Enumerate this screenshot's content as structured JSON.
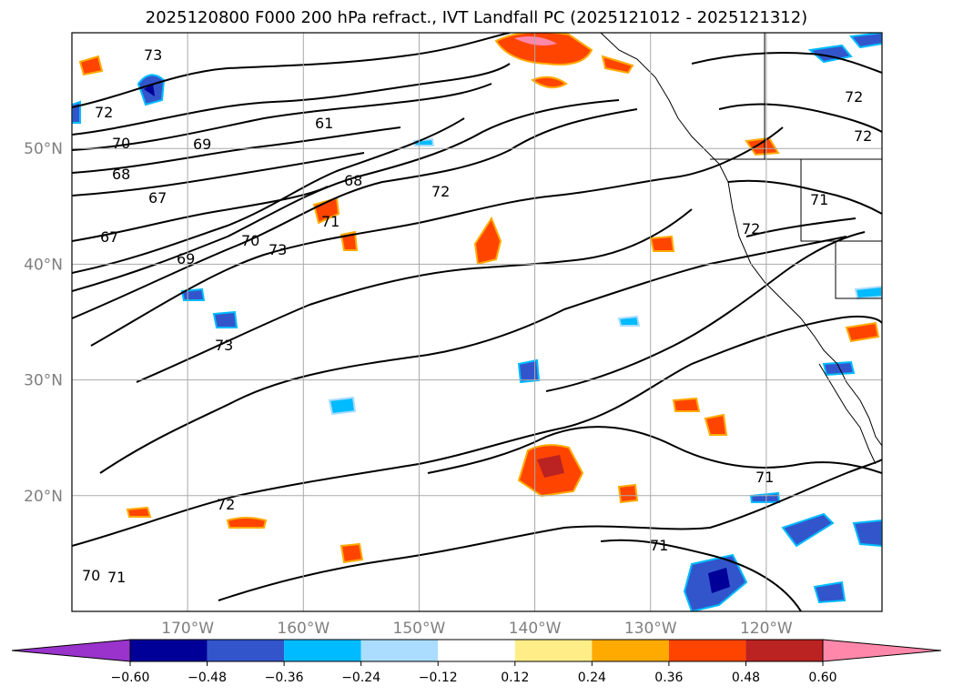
{
  "title": "2025120800 F000 200 hPa refract., IVT Landfall PC (2025121012 - 2025121312)",
  "map": {
    "lat_range": [
      10,
      60
    ],
    "lon_range": [
      -180,
      -110
    ],
    "lat_labels": [
      "50°N",
      "40°N",
      "30°N",
      "20°N"
    ],
    "lat_values": [
      50,
      40,
      30,
      20
    ],
    "lon_labels": [
      "170°W",
      "160°W",
      "150°W",
      "140°W",
      "130°W",
      "120°W"
    ],
    "lon_values": [
      -170,
      -160,
      -150,
      -140,
      -130,
      -120
    ],
    "grid": true
  },
  "contour_labels": [
    "73",
    "72",
    "70",
    "69",
    "68",
    "67",
    "67",
    "61",
    "68",
    "72",
    "71",
    "70",
    "73",
    "69",
    "72",
    "72",
    "72",
    "72",
    "71",
    "71",
    "71",
    "70",
    "71",
    "73"
  ],
  "colorbar": {
    "extend": "both",
    "levels": [
      -0.72,
      -0.6,
      -0.48,
      -0.36,
      -0.24,
      -0.12,
      0.12,
      0.24,
      0.36,
      0.48,
      0.6,
      0.72
    ],
    "colors": [
      "#9933cc",
      "#000099",
      "#3355cc",
      "#00bbff",
      "#aaddff",
      "#ffffff",
      "#ffee88",
      "#ffaa00",
      "#ff4400",
      "#bb2222",
      "#ff88aa"
    ],
    "tick_labels": [
      "−0.60",
      "−0.48",
      "−0.36",
      "−0.24",
      "−0.12",
      "0.12",
      "0.24",
      "0.36",
      "0.48",
      "0.60"
    ]
  }
}
